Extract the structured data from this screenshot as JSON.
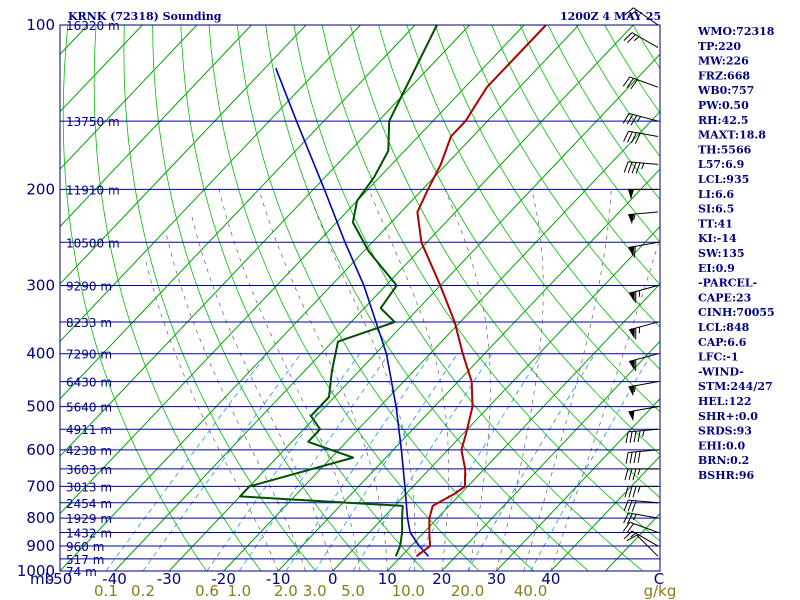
{
  "header": {
    "station": "KRNK (72318) Sounding",
    "time": "1200Z  4 MAY 25"
  },
  "indices": [
    "WMO:72318",
    "TP:220",
    "MW:226",
    "FRZ:668",
    "WB0:757",
    "PW:0.50",
    "RH:42.5",
    "MAXT:18.8",
    "TH:5566",
    "L57:6.9",
    "LCL:935",
    "LI:6.6",
    "SI:6.5",
    "TT:41",
    "KI:-14",
    "SW:135",
    "EI:0.9",
    "-PARCEL-",
    "CAPE:23",
    "CINH:70055",
    "LCL:848",
    "CAP:6.6",
    "LFC:-1",
    "-WIND-",
    "STM:244/27",
    "HEL:122",
    "SHR+:0.0",
    "SRDS:93",
    "EHI:0.0",
    "BRN:0.2",
    "BSHR:96"
  ],
  "colors": {
    "frame": "#000080",
    "isobar": "#0000a0",
    "isotherm": "#00a000",
    "dry_adiabat": "#00c000",
    "mixing_ratio": "#1e90ff",
    "moist_adiabat": "#606060",
    "temperature": "#b00000",
    "dewpoint": "#005000",
    "parcel": "#0000c0",
    "mixing_label": "#8a7a1a"
  },
  "chart_data": {
    "type": "skew-t",
    "pressure_axis": {
      "unit": "mb",
      "scale": "log",
      "range": [
        1000,
        100
      ],
      "ticks": [
        100,
        200,
        300,
        400,
        500,
        600,
        700,
        800,
        900,
        1000
      ]
    },
    "temperature_axis": {
      "unit": "C",
      "ticks": [
        -50,
        -40,
        -30,
        -20,
        -10,
        0,
        10,
        20,
        30,
        40
      ],
      "ticks_display": [
        "-50",
        "-40",
        "-30",
        "-20",
        "-10",
        "0",
        "10",
        "20",
        "30",
        "40"
      ]
    },
    "height_labels": [
      {
        "p": 100,
        "label": "16320 m"
      },
      {
        "p": 150,
        "label": "13750 m"
      },
      {
        "p": 200,
        "label": "11910 m"
      },
      {
        "p": 250,
        "label": "10500 m"
      },
      {
        "p": 300,
        "label": "9290 m"
      },
      {
        "p": 350,
        "label": "8233 m"
      },
      {
        "p": 400,
        "label": "7290 m"
      },
      {
        "p": 450,
        "label": "6430 m"
      },
      {
        "p": 500,
        "label": "5640 m"
      },
      {
        "p": 550,
        "label": "4911 m"
      },
      {
        "p": 600,
        "label": "4238 m"
      },
      {
        "p": 650,
        "label": "3603 m"
      },
      {
        "p": 700,
        "label": "3013 m"
      },
      {
        "p": 750,
        "label": "2454 m"
      },
      {
        "p": 800,
        "label": "1929 m"
      },
      {
        "p": 850,
        "label": "1432 m"
      },
      {
        "p": 900,
        "label": "960 m"
      },
      {
        "p": 950,
        "label": "517 m"
      },
      {
        "p": 1000,
        "label": "74 m"
      }
    ],
    "mixing_ratio_labels": [
      "0.1",
      "0.2",
      "0.6",
      "1.0",
      "2.0",
      "3.0",
      "5.0",
      "10.0",
      "20.0",
      "40.0"
    ],
    "mixing_ratio_unit": "g/kg",
    "temperature": [
      {
        "p": 940,
        "t": 12.8
      },
      {
        "p": 900,
        "t": 13.5
      },
      {
        "p": 850,
        "t": 11.0
      },
      {
        "p": 800,
        "t": 8.5
      },
      {
        "p": 760,
        "t": 7.0
      },
      {
        "p": 720,
        "t": 9.0
      },
      {
        "p": 700,
        "t": 9.5
      },
      {
        "p": 650,
        "t": 6.5
      },
      {
        "p": 600,
        "t": 2.5
      },
      {
        "p": 560,
        "t": 0.5
      },
      {
        "p": 500,
        "t": -3.0
      },
      {
        "p": 450,
        "t": -7.5
      },
      {
        "p": 400,
        "t": -14.0
      },
      {
        "p": 350,
        "t": -21.0
      },
      {
        "p": 300,
        "t": -30.0
      },
      {
        "p": 250,
        "t": -41.0
      },
      {
        "p": 220,
        "t": -47.0
      },
      {
        "p": 200,
        "t": -49.0
      },
      {
        "p": 180,
        "t": -51.0
      },
      {
        "p": 160,
        "t": -54.0
      },
      {
        "p": 150,
        "t": -54.0
      },
      {
        "p": 130,
        "t": -56.0
      },
      {
        "p": 100,
        "t": -56.0
      }
    ],
    "dewpoint": [
      {
        "p": 940,
        "t": 9.0
      },
      {
        "p": 900,
        "t": 8.0
      },
      {
        "p": 850,
        "t": 6.0
      },
      {
        "p": 800,
        "t": 3.5
      },
      {
        "p": 760,
        "t": 1.5
      },
      {
        "p": 730,
        "t": -30.0
      },
      {
        "p": 700,
        "t": -30.0
      },
      {
        "p": 620,
        "t": -16.0
      },
      {
        "p": 580,
        "t": -27.0
      },
      {
        "p": 550,
        "t": -27.0
      },
      {
        "p": 520,
        "t": -31.0
      },
      {
        "p": 480,
        "t": -31.0
      },
      {
        "p": 430,
        "t": -35.0
      },
      {
        "p": 380,
        "t": -39.0
      },
      {
        "p": 350,
        "t": -32.0
      },
      {
        "p": 330,
        "t": -37.0
      },
      {
        "p": 300,
        "t": -38.0
      },
      {
        "p": 260,
        "t": -49.0
      },
      {
        "p": 230,
        "t": -57.0
      },
      {
        "p": 210,
        "t": -60.0
      },
      {
        "p": 190,
        "t": -61.0
      },
      {
        "p": 170,
        "t": -63.0
      },
      {
        "p": 150,
        "t": -68.0
      },
      {
        "p": 100,
        "t": -76.0
      }
    ],
    "parcel": [
      {
        "p": 940,
        "t": 15.0
      },
      {
        "p": 900,
        "t": 11.5
      },
      {
        "p": 850,
        "t": 7.5
      },
      {
        "p": 800,
        "t": 4.5
      },
      {
        "p": 700,
        "t": -1.5
      },
      {
        "p": 600,
        "t": -8.5
      },
      {
        "p": 500,
        "t": -17.0
      },
      {
        "p": 400,
        "t": -28.0
      },
      {
        "p": 300,
        "t": -44.0
      },
      {
        "p": 250,
        "t": -55.0
      },
      {
        "p": 200,
        "t": -68.0
      },
      {
        "p": 150,
        "t": -85.0
      },
      {
        "p": 120,
        "t": -98.0
      }
    ],
    "winds": [
      {
        "p": 940,
        "dir": 315,
        "kt": 10
      },
      {
        "p": 900,
        "dir": 300,
        "kt": 15
      },
      {
        "p": 850,
        "dir": 290,
        "kt": 20
      },
      {
        "p": 800,
        "dir": 280,
        "kt": 25
      },
      {
        "p": 750,
        "dir": 275,
        "kt": 30
      },
      {
        "p": 700,
        "dir": 270,
        "kt": 35
      },
      {
        "p": 650,
        "dir": 270,
        "kt": 35
      },
      {
        "p": 600,
        "dir": 265,
        "kt": 40
      },
      {
        "p": 550,
        "dir": 265,
        "kt": 45
      },
      {
        "p": 500,
        "dir": 260,
        "kt": 50
      },
      {
        "p": 450,
        "dir": 260,
        "kt": 55
      },
      {
        "p": 400,
        "dir": 255,
        "kt": 60
      },
      {
        "p": 350,
        "dir": 255,
        "kt": 65
      },
      {
        "p": 300,
        "dir": 255,
        "kt": 65
      },
      {
        "p": 250,
        "dir": 260,
        "kt": 60
      },
      {
        "p": 220,
        "dir": 265,
        "kt": 55
      },
      {
        "p": 200,
        "dir": 270,
        "kt": 50
      },
      {
        "p": 180,
        "dir": 275,
        "kt": 45
      },
      {
        "p": 160,
        "dir": 280,
        "kt": 40
      },
      {
        "p": 150,
        "dir": 285,
        "kt": 35
      },
      {
        "p": 130,
        "dir": 290,
        "kt": 30
      },
      {
        "p": 110,
        "dir": 300,
        "kt": 25
      },
      {
        "p": 100,
        "dir": 305,
        "kt": 20
      }
    ]
  }
}
